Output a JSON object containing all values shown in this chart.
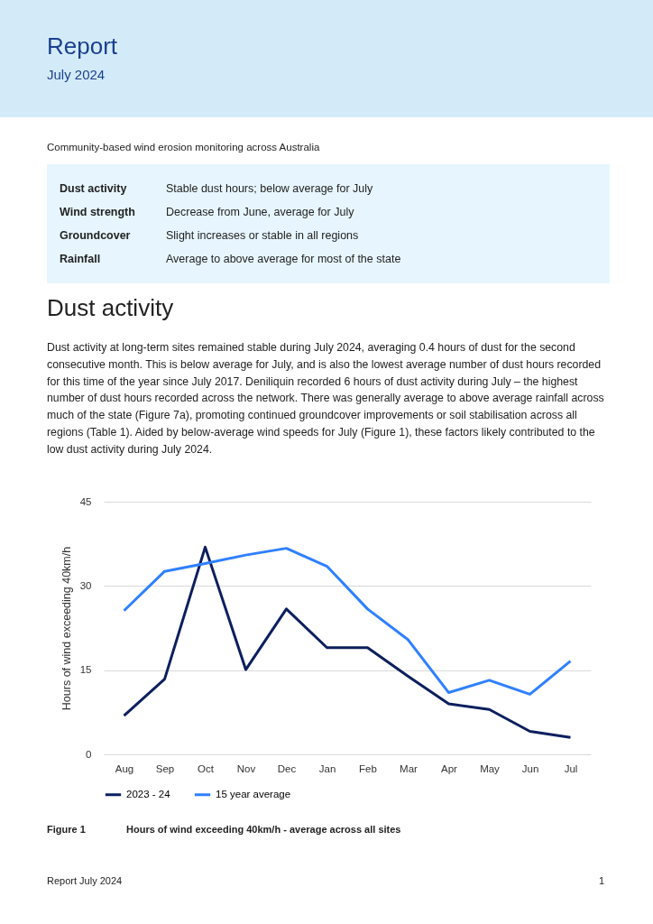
{
  "chart_data": {
    "type": "line",
    "title": "Report",
    "subtitle": "July 2024",
    "xlabel": null,
    "ylabel": "Hours of wind exceeding 40km/h",
    "categories": [
      "Aug",
      "Sep",
      "Oct",
      "Nov",
      "Dec",
      "Jan",
      "Feb",
      "Mar",
      "Apr",
      "May",
      "Jun",
      "Jul"
    ],
    "series": [
      {
        "name": "2023 - 24",
        "color": "#0c1f5e",
        "values": [
          6.9,
          13.4,
          36.9,
          15.1,
          25.9,
          19.0,
          19.0,
          13.9,
          9.0,
          8.0,
          4.1,
          3.0
        ]
      },
      {
        "name": "15 year average",
        "color": "#2f80ff",
        "values": [
          25.6,
          32.6,
          34.0,
          35.5,
          36.7,
          33.5,
          25.9,
          20.4,
          11.0,
          13.2,
          10.7,
          16.6
        ]
      }
    ],
    "ylim": [
      0,
      45
    ],
    "yticks": [
      0,
      15,
      30,
      45
    ],
    "grid": "y",
    "legend": "bottom",
    "marker": "none",
    "line_style": "solid",
    "annotations": [
      "Community-based wind erosion monitoring across Australia",
      "Dust activity",
      "Stable dust hours; below average for July",
      "Wind strength",
      "Decrease from June, average for July",
      "Groundcover",
      "Slight increases or stable in all regions",
      "Rainfall",
      "Average to above average for most of the state",
      "Dust activity",
      "Dust activity at long-term sites remained stable during July 2024, averaging 0.4 hours of dust for the second consecutive month. This is below average for July, and is also the lowest average number of dust hours recorded for this time of the year since July 2017. Deniliquin recorded 6 hours of dust activity during July – the highest number of dust hours recorded across the network. There was generally average to above average rainfall across much of the state (Figure 7a), promoting continued groundcover improvements or soil stabilisation across all regions (Table 1). Aided by below-average wind speeds for July (Figure 1), these factors likely contributed to the low dust activity during July 2024.",
      "Figure 1",
      "Hours of wind exceeding 40km/h - average across all sites",
      "Report July 2024",
      "1"
    ]
  }
}
